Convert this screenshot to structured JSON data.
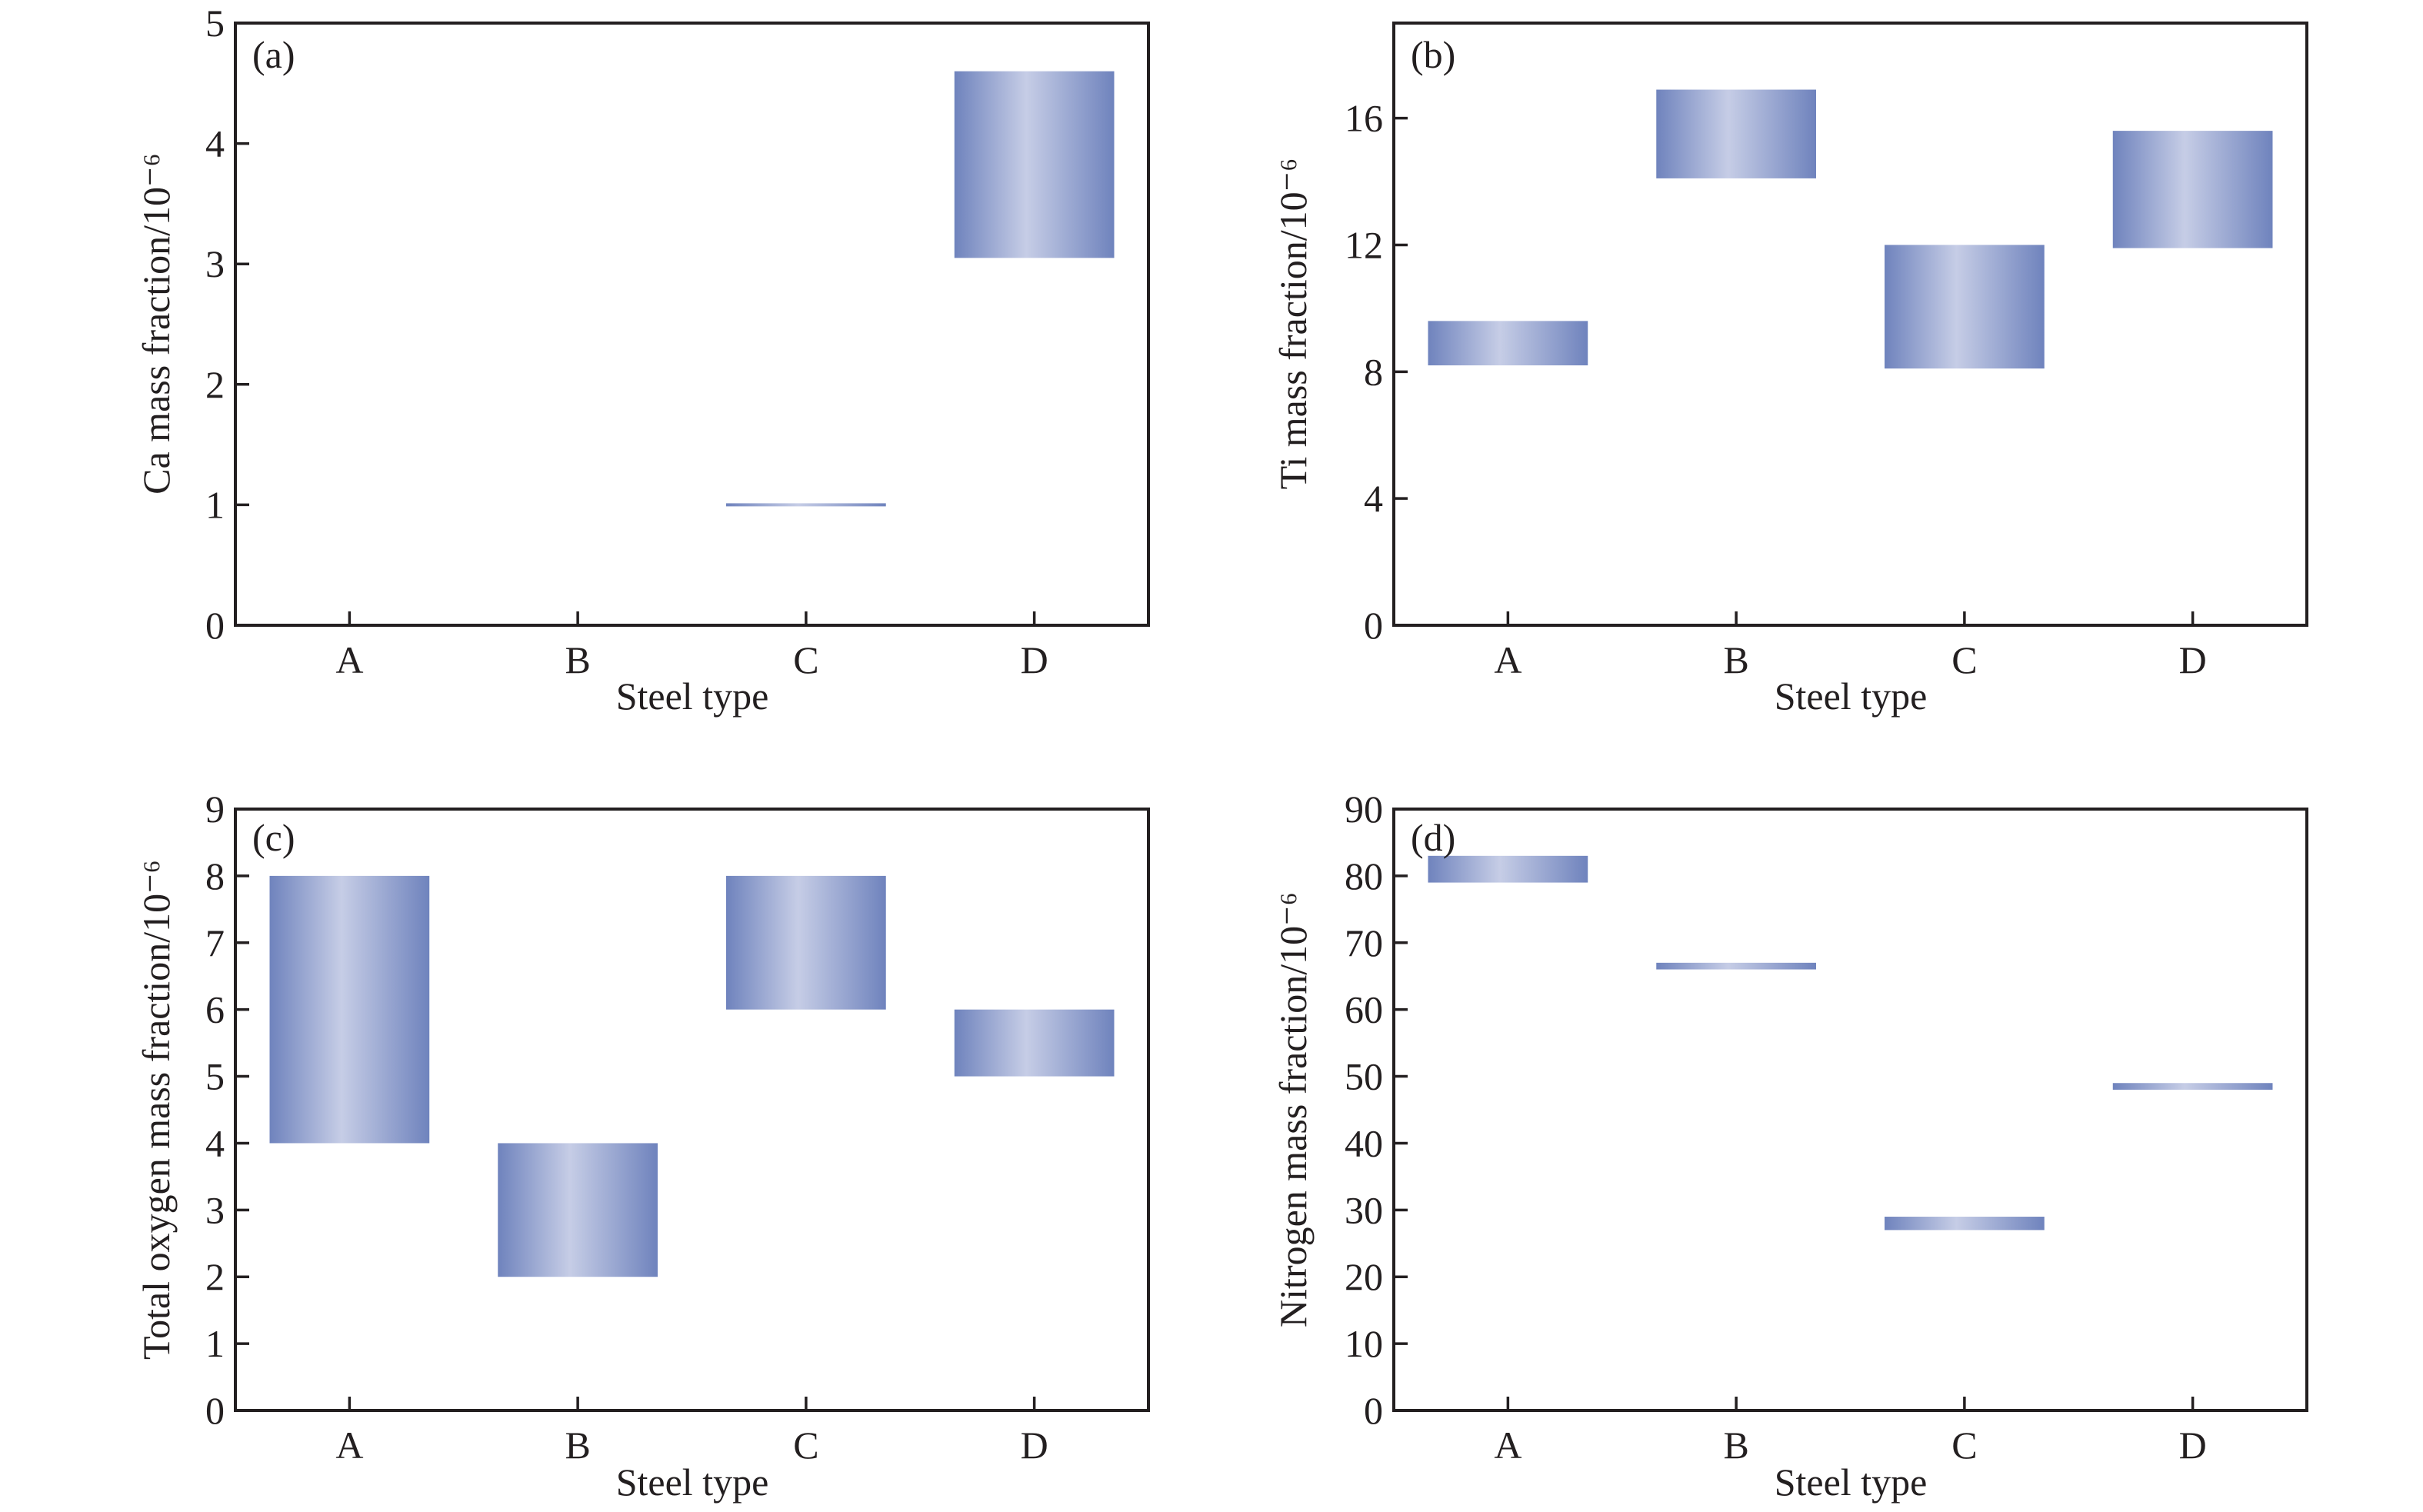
{
  "chart_data": [
    {
      "type": "bar",
      "subtype": "floating-range-bar",
      "panel_label": "(a)",
      "title": "",
      "xlabel": "Steel type",
      "ylabel": "Ca mass fraction/10⁻⁶",
      "categories": [
        "A",
        "B",
        "C",
        "D"
      ],
      "ranges": [
        null,
        null,
        [
          1.0,
          1.0
        ],
        [
          3.05,
          4.6
        ]
      ],
      "ylim": [
        0,
        5
      ],
      "yticks": [
        0,
        1,
        2,
        3,
        4,
        5
      ],
      "grid": false,
      "legend": "none"
    },
    {
      "type": "bar",
      "subtype": "floating-range-bar",
      "panel_label": "(b)",
      "title": "",
      "xlabel": "Steel type",
      "ylabel": "Ti mass fraction/10⁻⁶",
      "categories": [
        "A",
        "B",
        "C",
        "D"
      ],
      "ranges": [
        [
          8.2,
          9.6
        ],
        [
          14.1,
          16.9
        ],
        [
          8.1,
          12.0
        ],
        [
          11.9,
          15.6
        ]
      ],
      "ylim": [
        0,
        19
      ],
      "yticks": [
        0,
        4,
        8,
        12,
        16
      ],
      "grid": false,
      "legend": "none"
    },
    {
      "type": "bar",
      "subtype": "floating-range-bar",
      "panel_label": "(c)",
      "title": "",
      "xlabel": "Steel type",
      "ylabel": "Total oxygen mass fraction/10⁻⁶",
      "categories": [
        "A",
        "B",
        "C",
        "D"
      ],
      "ranges": [
        [
          4,
          8
        ],
        [
          2,
          4
        ],
        [
          6,
          8
        ],
        [
          5,
          6
        ]
      ],
      "ylim": [
        0,
        9
      ],
      "yticks": [
        0,
        1,
        2,
        3,
        4,
        5,
        6,
        7,
        8,
        9
      ],
      "grid": false,
      "legend": "none"
    },
    {
      "type": "bar",
      "subtype": "floating-range-bar",
      "panel_label": "(d)",
      "title": "",
      "xlabel": "Steel type",
      "ylabel": "Nitrogen mass fraction/10⁻⁶",
      "categories": [
        "A",
        "B",
        "C",
        "D"
      ],
      "ranges": [
        [
          79,
          83
        ],
        [
          66,
          67
        ],
        [
          27,
          29
        ],
        [
          48,
          49
        ]
      ],
      "ylim": [
        0,
        90
      ],
      "yticks": [
        0,
        10,
        20,
        30,
        40,
        50,
        60,
        70,
        80,
        90
      ],
      "grid": false,
      "legend": "none"
    }
  ],
  "colors": {
    "bar_edge": "#6f83bd",
    "bar_center": "#c6cde6",
    "axis": "#231f20"
  }
}
